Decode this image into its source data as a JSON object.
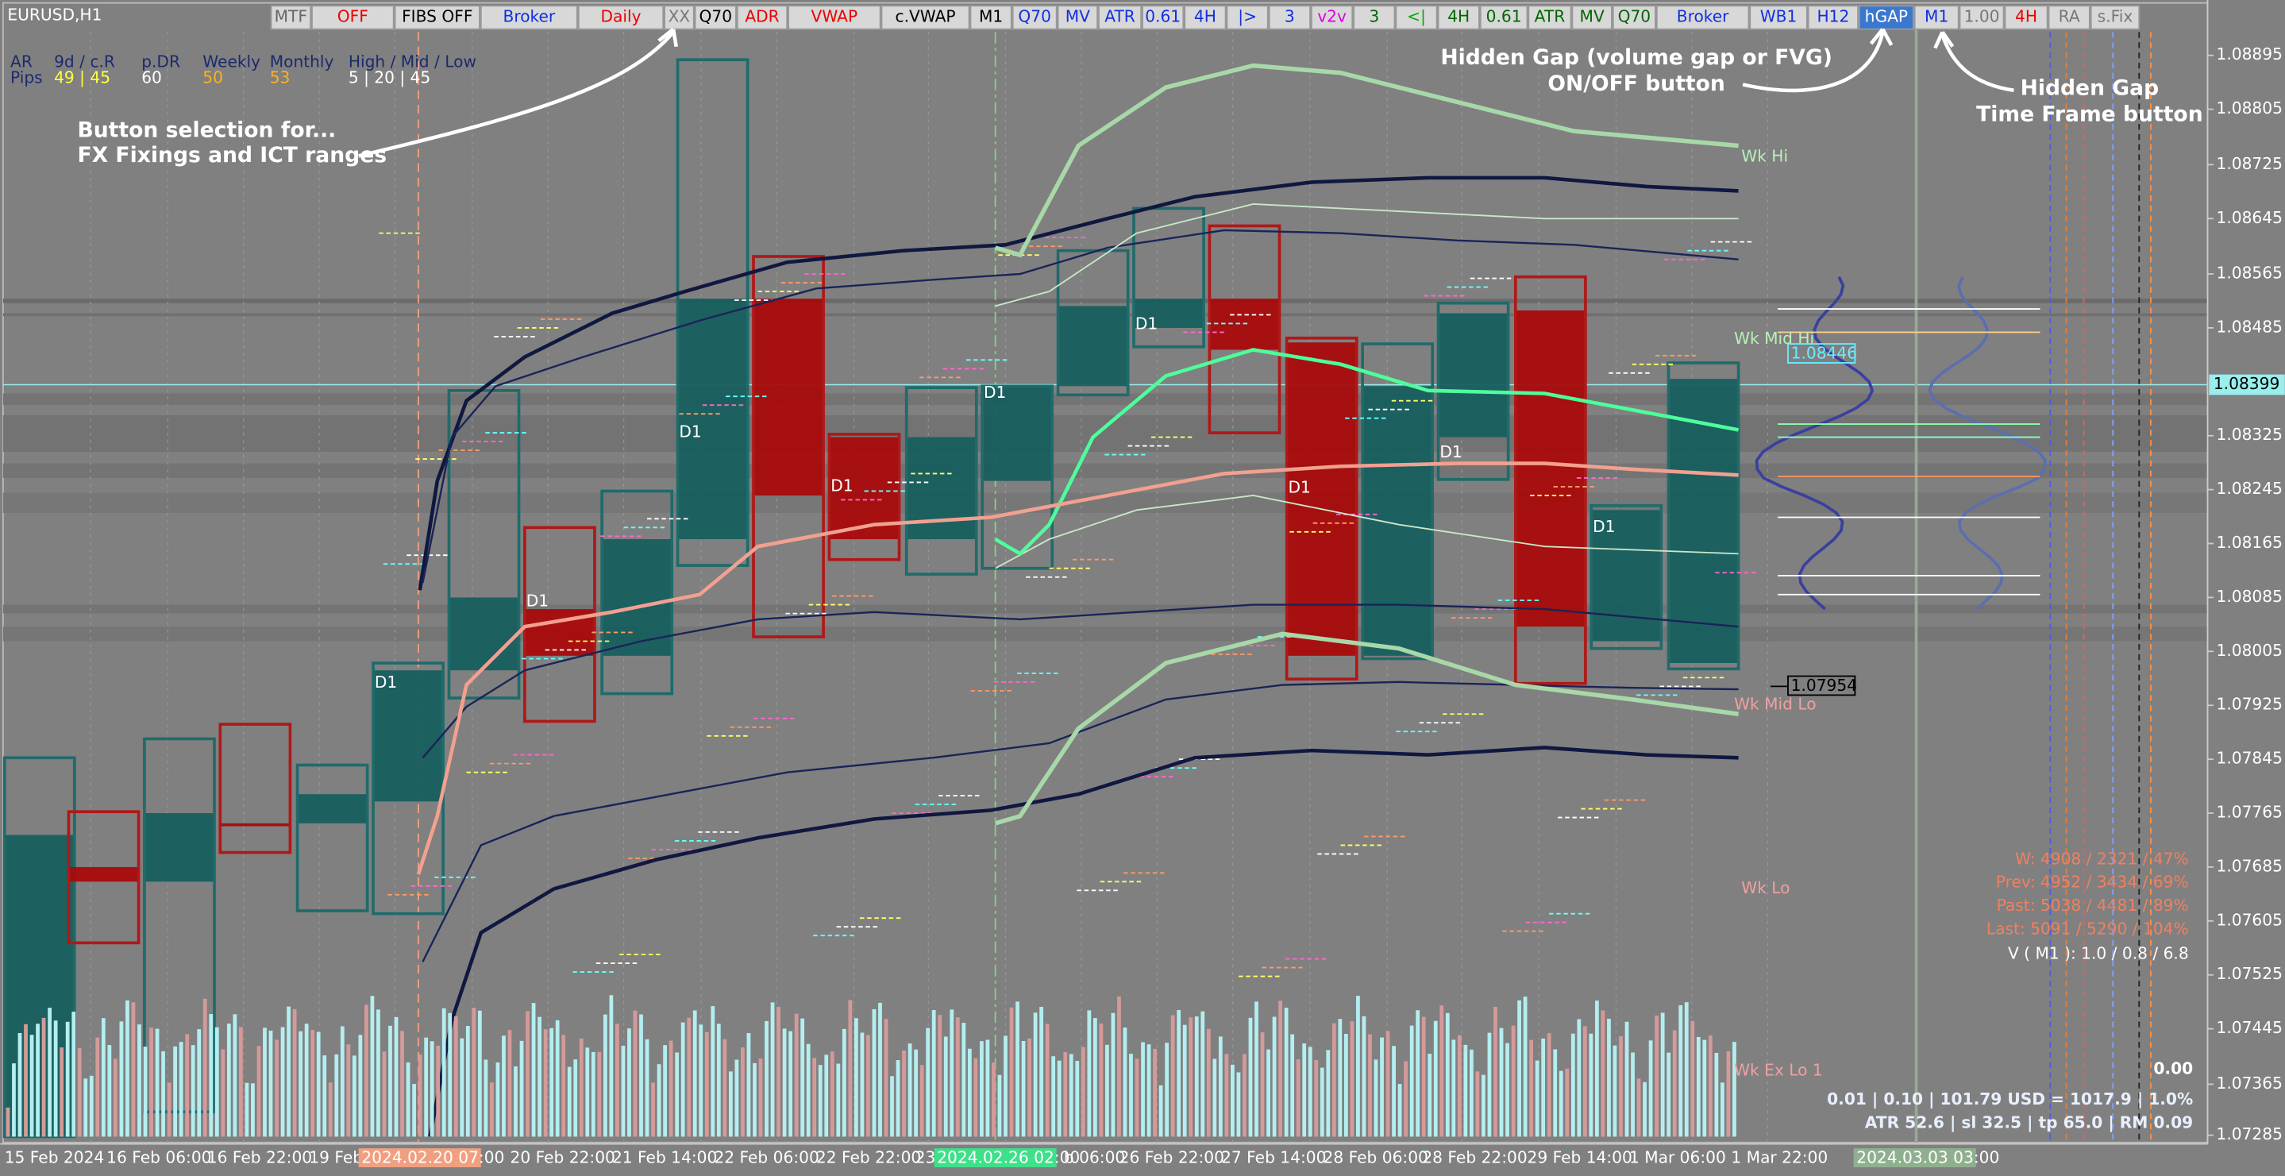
{
  "symbol": "EURUSD,H1",
  "toolbar": {
    "buttons": [
      "MTF",
      "OFF",
      "FIBS OFF",
      "Broker",
      "Daily",
      "XX",
      "Q70",
      "ADR",
      "VWAP",
      "c.VWAP",
      "M1",
      "Q70",
      "MV",
      "ATR",
      "0.61",
      "4H",
      "|>",
      "3",
      "v2v",
      "3",
      "<|",
      "4H",
      "0.61",
      "ATR",
      "MV",
      "Q70",
      "Broker",
      "WB1",
      "H12",
      "hGAP",
      "M1",
      "1.00",
      "4H",
      "RA",
      "s.Fix"
    ]
  },
  "stats": {
    "headers": [
      "AR",
      "9d / c.R",
      "p.DR",
      "Weekly",
      "Monthly",
      "High / Mid / Low"
    ],
    "row": [
      "Pips",
      "49 | 45",
      "60",
      "50",
      "53",
      "5 | 20 | 45"
    ]
  },
  "annotations": {
    "fixings": [
      "Button selection for...",
      "FX Fixings and ICT ranges"
    ],
    "gap": [
      "Hidden Gap (volume gap or FVG)",
      "ON/OFF button"
    ],
    "timeframe": [
      "Hidden Gap",
      "Time Frame button"
    ]
  },
  "price_axis": {
    "labels": [
      "1.08895",
      "1.08805",
      "1.08725",
      "1.08645",
      "1.08565",
      "1.08485",
      "1.08325",
      "1.08245",
      "1.08165",
      "1.08085",
      "1.08005",
      "1.07925",
      "1.07845",
      "1.07765",
      "1.07685",
      "1.07605",
      "1.07525",
      "1.07445",
      "1.07365",
      "1.07285"
    ],
    "current": "1.08399"
  },
  "time_axis": {
    "labels": [
      "15 Feb 2024",
      "16 Feb 06:00",
      "16 Feb 22:00",
      "19 Feb",
      "00",
      "20 Feb 22:00",
      "21 Feb 14:00",
      "22 Feb 06:00",
      "22 Feb 22:00",
      "23",
      "b 06:00",
      "26 Feb 22:00",
      "27 Feb 14:00",
      "28 Feb 06:00",
      "28 Feb 22:00",
      "29 Feb 14:00",
      "1 Mar 06:00",
      "1 Mar 22:00"
    ],
    "highlights": [
      "2024.02.20 07:00",
      "2024.02.26 02:00",
      "2024.03.03 03:00"
    ]
  },
  "chart_labels": {
    "levels": [
      "Wk Hi",
      "Wk Mid Hi",
      "Wk Mid Lo",
      "Wk Lo",
      "Wk Ex Lo 1"
    ],
    "gap_prices": [
      "1.08446",
      "1.07954"
    ],
    "d1": "D1"
  },
  "summary": {
    "lines": [
      "W: 4908 / 2321 / 47%",
      "Prev: 4952 / 3434 / 69%",
      "Past: 5038 / 4481 / 89%",
      "Last: 5091 / 5290 / 104%"
    ],
    "volume": "V ( M1 ): 1.0 / 0.8 / 6.8",
    "pnl": "0.00",
    "risk": "0.01  |  0.10  |  101.79 USD = 1017.9  |  1.0%",
    "atr": "ATR 52.6  |  sl 32.5  |  tp 65.0  |  RM 0.09"
  }
}
